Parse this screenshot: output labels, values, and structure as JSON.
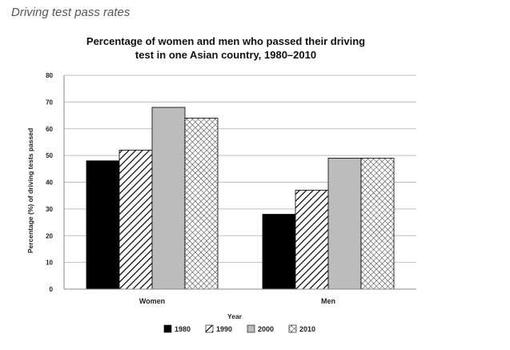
{
  "caption": "Driving test pass rates",
  "chart_data": {
    "type": "bar",
    "title_lines": [
      "Percentage of women and men who passed their driving",
      "test in one Asian country, 1980–2010"
    ],
    "xlabel": "Year",
    "ylabel": "Percentage (%) of driving tests passed",
    "ylim": [
      0,
      80
    ],
    "yticks": [
      0,
      10,
      20,
      30,
      40,
      50,
      60,
      70,
      80
    ],
    "grid": true,
    "categories": [
      "Women",
      "Men"
    ],
    "series": [
      {
        "name": "1980",
        "values": [
          48,
          28
        ],
        "pattern": "solid-black"
      },
      {
        "name": "1990",
        "values": [
          52,
          37
        ],
        "pattern": "diagonal-hatch"
      },
      {
        "name": "2000",
        "values": [
          68,
          49
        ],
        "pattern": "solid-gray"
      },
      {
        "name": "2010",
        "values": [
          64,
          49
        ],
        "pattern": "crosshatch"
      }
    ],
    "legend_position": "bottom"
  }
}
